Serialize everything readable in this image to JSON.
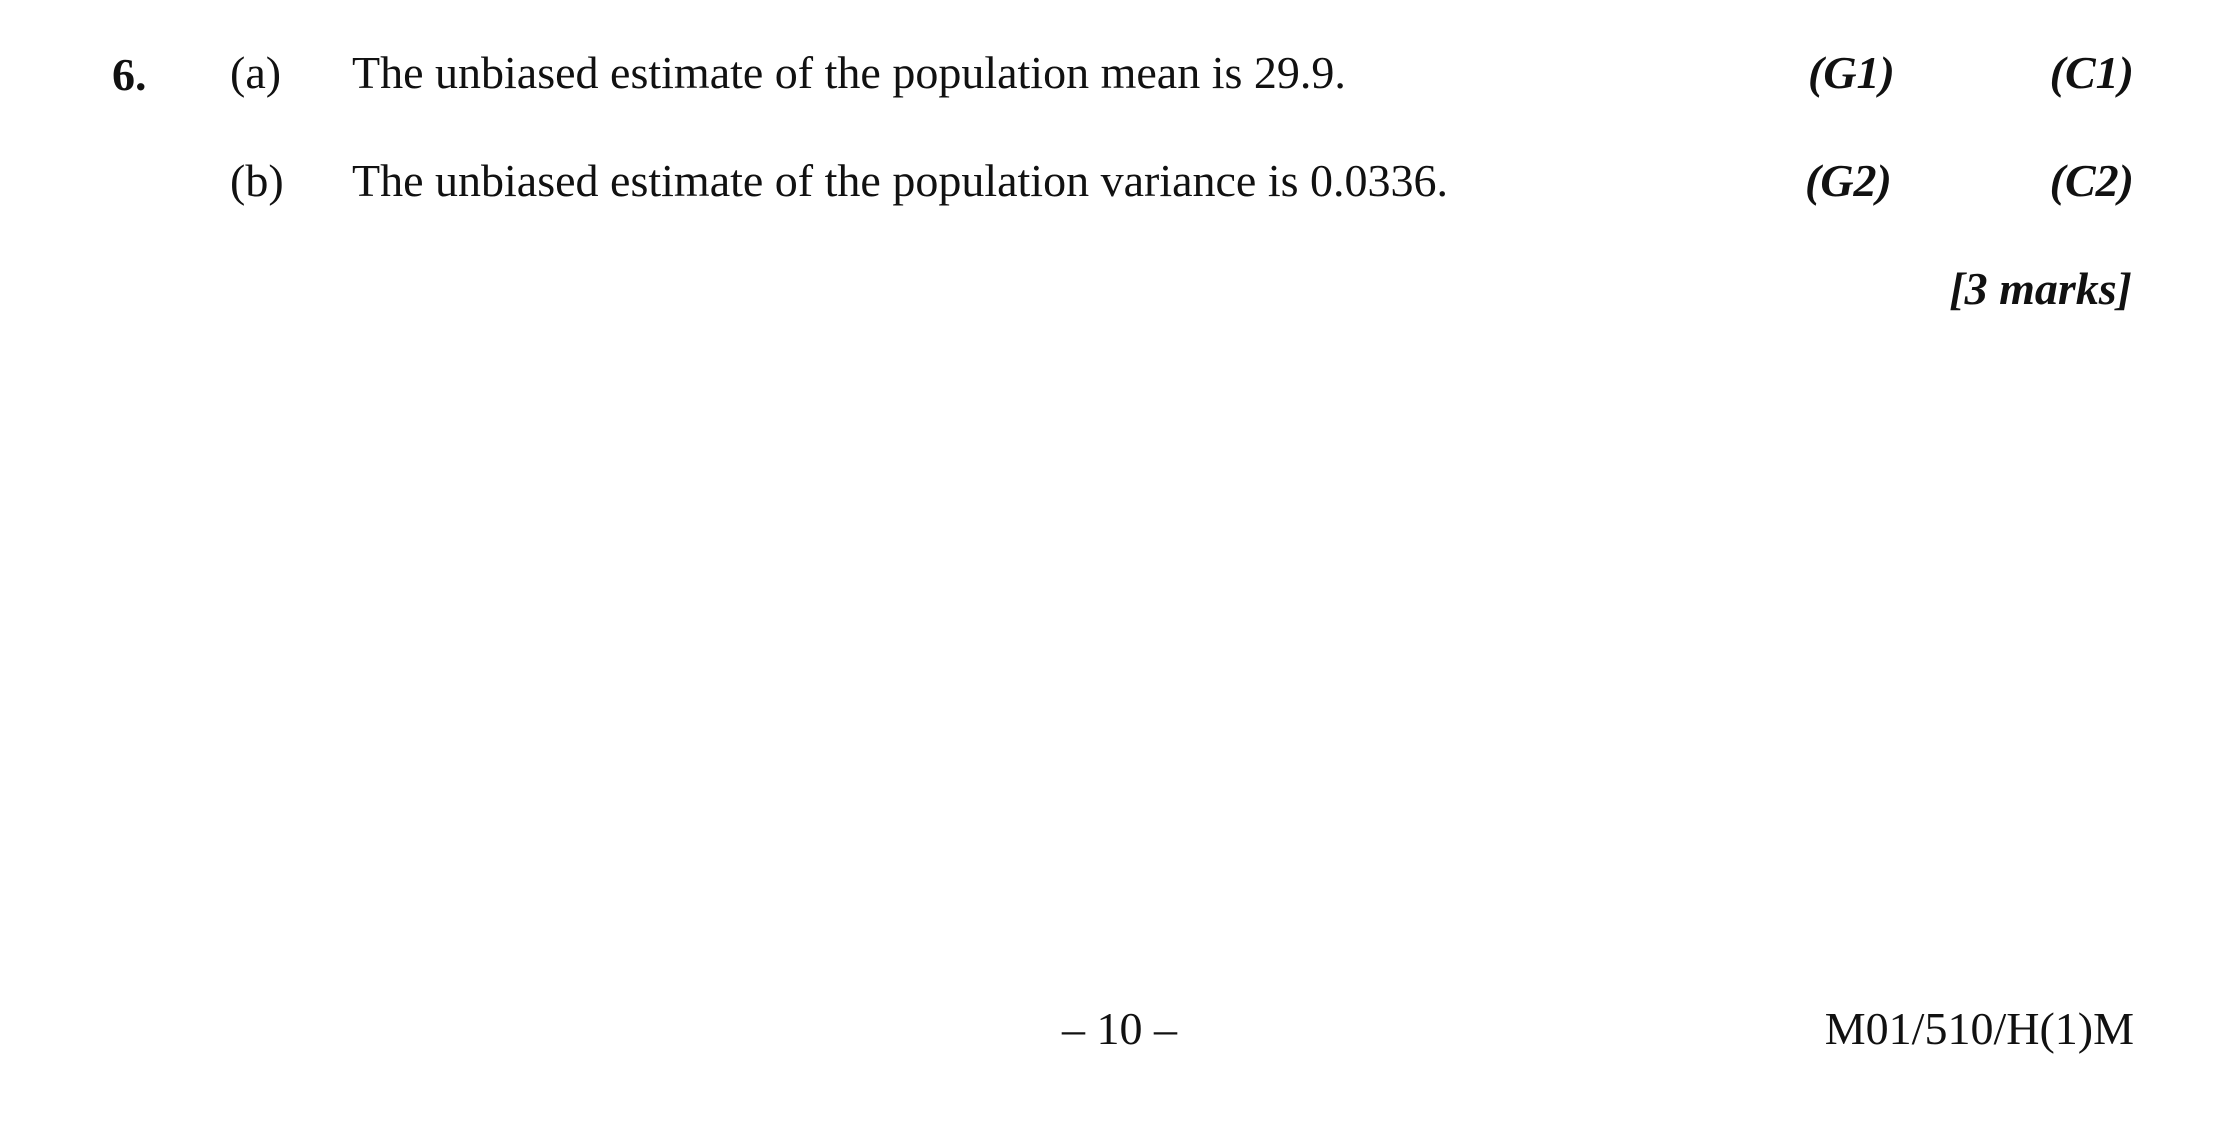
{
  "question": {
    "number": "6.",
    "parts": [
      {
        "label": "(a)",
        "text": "The unbiased estimate of the population mean is 29.9.",
        "mark_g": "(G1)",
        "mark_c": "(C1)"
      },
      {
        "label": "(b)",
        "text": "The unbiased estimate of the population variance is 0.0336.",
        "mark_g": "(G2)",
        "mark_c": "(C2)"
      }
    ],
    "total_marks": "[3 marks]"
  },
  "footer": {
    "page_number": "– 10 –",
    "code": "M01/510/H(1)M"
  }
}
